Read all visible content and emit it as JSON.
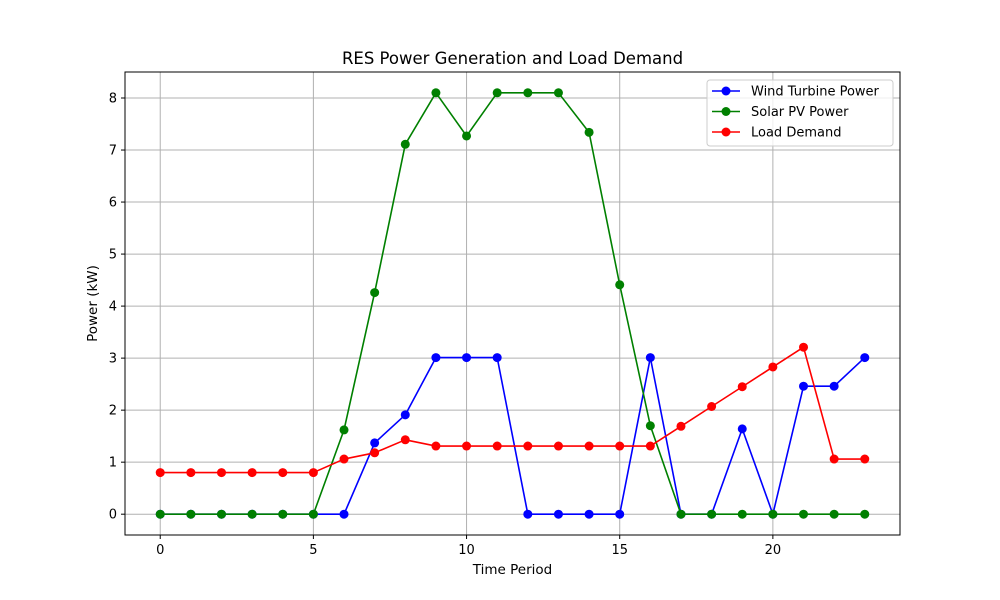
{
  "chart_data": {
    "type": "line",
    "title": "RES Power Generation and Load Demand",
    "xlabel": "Time Period",
    "ylabel": "Power (kW)",
    "x": [
      0,
      1,
      2,
      3,
      4,
      5,
      6,
      7,
      8,
      9,
      10,
      11,
      12,
      13,
      14,
      15,
      16,
      17,
      18,
      19,
      20,
      21,
      22,
      23
    ],
    "xlim": [
      -1.15,
      24.15
    ],
    "ylim": [
      -0.4,
      8.5
    ],
    "x_ticks": [
      0,
      5,
      10,
      15,
      20
    ],
    "y_ticks": [
      0,
      1,
      2,
      3,
      4,
      5,
      6,
      7,
      8
    ],
    "grid": true,
    "legend": "top-right",
    "series": [
      {
        "name": "Wind Turbine Power",
        "color": "#0000ff",
        "values": [
          0,
          0,
          0,
          0,
          0,
          0,
          0,
          1.37,
          1.91,
          3.01,
          3.01,
          3.01,
          0,
          0,
          0,
          0,
          3.01,
          0,
          0,
          1.64,
          0,
          2.46,
          2.46,
          3.01
        ]
      },
      {
        "name": "Solar PV Power",
        "color": "#008000",
        "values": [
          0,
          0,
          0,
          0,
          0,
          0,
          1.62,
          4.26,
          7.11,
          8.1,
          7.27,
          8.1,
          8.1,
          8.1,
          7.34,
          4.41,
          1.7,
          0,
          0,
          0,
          0,
          0,
          0,
          0
        ]
      },
      {
        "name": "Load Demand",
        "color": "#ff0000",
        "values": [
          0.8,
          0.8,
          0.8,
          0.8,
          0.8,
          0.8,
          1.06,
          1.18,
          1.43,
          1.31,
          1.31,
          1.31,
          1.31,
          1.31,
          1.31,
          1.31,
          1.31,
          1.69,
          2.07,
          2.45,
          2.83,
          3.21,
          1.06,
          1.06
        ]
      }
    ]
  }
}
